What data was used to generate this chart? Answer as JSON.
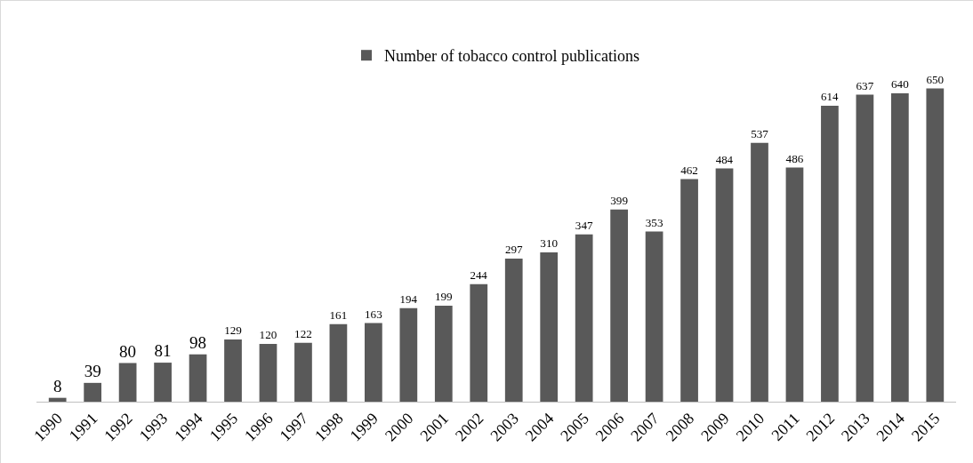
{
  "chart_data": {
    "type": "bar",
    "categories": [
      "1990",
      "1991",
      "1992",
      "1993",
      "1994",
      "1995",
      "1996",
      "1997",
      "1998",
      "1999",
      "2000",
      "2001",
      "2002",
      "2003",
      "2004",
      "2005",
      "2006",
      "2007",
      "2008",
      "2009",
      "2010",
      "2011",
      "2012",
      "2013",
      "2014",
      "2015"
    ],
    "series": [
      {
        "name": "Number of tobacco control publications",
        "color": "#595959",
        "values": [
          8,
          39,
          80,
          81,
          98,
          129,
          120,
          122,
          161,
          163,
          194,
          199,
          244,
          297,
          310,
          347,
          399,
          353,
          462,
          484,
          537,
          486,
          614,
          637,
          640,
          650
        ]
      }
    ],
    "data_labels": true,
    "legend": "top",
    "grid": false
  }
}
